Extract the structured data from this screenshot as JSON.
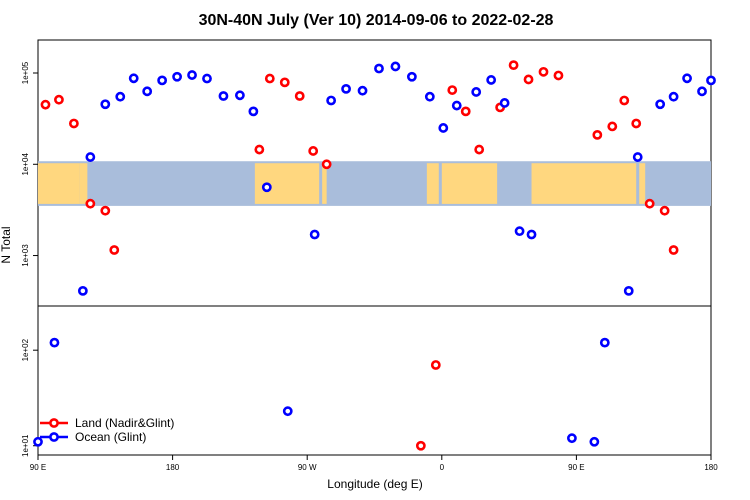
{
  "chart_data": {
    "type": "scatter",
    "title": "30N-40N July (Ver 10)   2014-09-06 to 2022-02-28",
    "xlabel": "Longitude (deg E)",
    "ylabel": "N Total",
    "xlim": [
      90,
      540
    ],
    "x_ticks": [
      {
        "value": 90,
        "label": "90 E"
      },
      {
        "value": 180,
        "label": "180"
      },
      {
        "value": 270,
        "label": "90 W"
      },
      {
        "value": 360,
        "label": "0"
      },
      {
        "value": 450,
        "label": "90 E"
      },
      {
        "value": 540,
        "label": "180"
      }
    ],
    "y_scale": "log10",
    "upper_panel": {
      "ylim": [
        280,
        230000
      ],
      "y_ticks": [
        {
          "value": 1000,
          "label": "1e+03"
        },
        {
          "value": 10000,
          "label": "1e+04"
        },
        {
          "value": 100000,
          "label": "1e+05"
        }
      ],
      "map_strip": {
        "y_range": [
          3500,
          10800
        ],
        "ocean_color": "#A9BDDB",
        "land_color": "#FFD77F"
      }
    },
    "lower_panel": {
      "ylim": [
        8,
        290
      ],
      "y_ticks": [
        {
          "value": 10,
          "label": "1e+01"
        },
        {
          "value": 100,
          "label": "1e+02"
        }
      ]
    },
    "series": [
      {
        "name": "Land (Nadir&Glint)",
        "color": "#FF0000",
        "points": [
          {
            "x": 95,
            "y": 45000
          },
          {
            "x": 104,
            "y": 51000
          },
          {
            "x": 114,
            "y": 28000
          },
          {
            "x": 125,
            "y": 3700
          },
          {
            "x": 135,
            "y": 3100
          },
          {
            "x": 141,
            "y": 1150
          },
          {
            "x": 238,
            "y": 14500
          },
          {
            "x": 245,
            "y": 87000
          },
          {
            "x": 255,
            "y": 79000
          },
          {
            "x": 265,
            "y": 56000
          },
          {
            "x": 274,
            "y": 14000
          },
          {
            "x": 283,
            "y": 10000
          },
          {
            "x": 346,
            "y": 10
          },
          {
            "x": 356,
            "y": 70
          },
          {
            "x": 367,
            "y": 65000
          },
          {
            "x": 376,
            "y": 38000
          },
          {
            "x": 385,
            "y": 14500
          },
          {
            "x": 399,
            "y": 42000
          },
          {
            "x": 408,
            "y": 122000
          },
          {
            "x": 418,
            "y": 85000
          },
          {
            "x": 428,
            "y": 103000
          },
          {
            "x": 438,
            "y": 94000
          },
          {
            "x": 464,
            "y": 21000
          },
          {
            "x": 474,
            "y": 26000
          },
          {
            "x": 482,
            "y": 50000
          },
          {
            "x": 490,
            "y": 28000
          },
          {
            "x": 499,
            "y": 3700
          },
          {
            "x": 509,
            "y": 3100
          },
          {
            "x": 515,
            "y": 1150
          }
        ]
      },
      {
        "name": "Ocean (Glint)",
        "color": "#0000FF",
        "points": [
          {
            "x": 90,
            "y": 11
          },
          {
            "x": 101,
            "y": 120
          },
          {
            "x": 120,
            "y": 410
          },
          {
            "x": 125,
            "y": 12000
          },
          {
            "x": 135,
            "y": 45500
          },
          {
            "x": 145,
            "y": 55000
          },
          {
            "x": 154,
            "y": 87500
          },
          {
            "x": 163,
            "y": 63000
          },
          {
            "x": 173,
            "y": 83000
          },
          {
            "x": 183,
            "y": 91000
          },
          {
            "x": 193,
            "y": 95000
          },
          {
            "x": 203,
            "y": 87000
          },
          {
            "x": 214,
            "y": 56000
          },
          {
            "x": 225,
            "y": 57000
          },
          {
            "x": 234,
            "y": 38000
          },
          {
            "x": 243,
            "y": 5600
          },
          {
            "x": 257,
            "y": 23
          },
          {
            "x": 275,
            "y": 1700
          },
          {
            "x": 286,
            "y": 50000
          },
          {
            "x": 296,
            "y": 67000
          },
          {
            "x": 307,
            "y": 64000
          },
          {
            "x": 318,
            "y": 112000
          },
          {
            "x": 329,
            "y": 118000
          },
          {
            "x": 340,
            "y": 91000
          },
          {
            "x": 352,
            "y": 55000
          },
          {
            "x": 361,
            "y": 25000
          },
          {
            "x": 370,
            "y": 44000
          },
          {
            "x": 383,
            "y": 62000
          },
          {
            "x": 393,
            "y": 84000
          },
          {
            "x": 402,
            "y": 47000
          },
          {
            "x": 412,
            "y": 1850
          },
          {
            "x": 420,
            "y": 1700
          },
          {
            "x": 447,
            "y": 12
          },
          {
            "x": 462,
            "y": 11
          },
          {
            "x": 469,
            "y": 120
          },
          {
            "x": 485,
            "y": 410
          },
          {
            "x": 491,
            "y": 12000
          },
          {
            "x": 506,
            "y": 45500
          },
          {
            "x": 515,
            "y": 55000
          },
          {
            "x": 524,
            "y": 87500
          },
          {
            "x": 534,
            "y": 63000
          },
          {
            "x": 540,
            "y": 83000
          }
        ]
      }
    ],
    "legend": {
      "position": "bottom-left"
    }
  }
}
